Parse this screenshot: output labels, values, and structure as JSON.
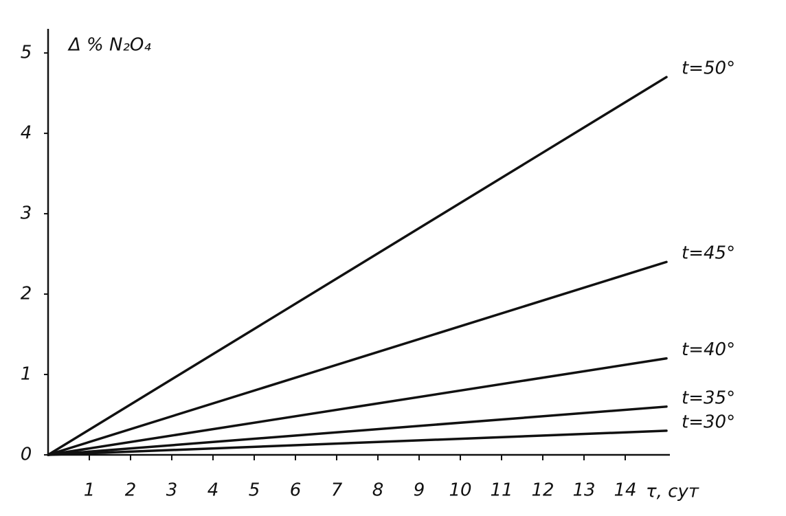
{
  "chart_data": {
    "type": "line",
    "y_label": "Δ % N₂O₄",
    "x_label": "τ, сут",
    "x": [
      0,
      15
    ],
    "series": [
      {
        "name": "t=50°",
        "color": "#111111",
        "values": [
          0,
          4.7
        ]
      },
      {
        "name": "t=45°",
        "color": "#111111",
        "values": [
          0,
          2.4
        ]
      },
      {
        "name": "t=40°",
        "color": "#111111",
        "values": [
          0,
          1.2
        ]
      },
      {
        "name": "t=35°",
        "color": "#111111",
        "values": [
          0,
          0.6
        ]
      },
      {
        "name": "t=30°",
        "color": "#111111",
        "values": [
          0,
          0.3
        ]
      }
    ],
    "xlim": [
      0,
      15.5
    ],
    "xticks": [
      1,
      2,
      3,
      4,
      5,
      6,
      7,
      8,
      9,
      10,
      11,
      12,
      13,
      14
    ],
    "ylim": [
      0,
      5.3
    ],
    "yticks": [
      0,
      1,
      2,
      3,
      4,
      5
    ],
    "grid": false
  }
}
